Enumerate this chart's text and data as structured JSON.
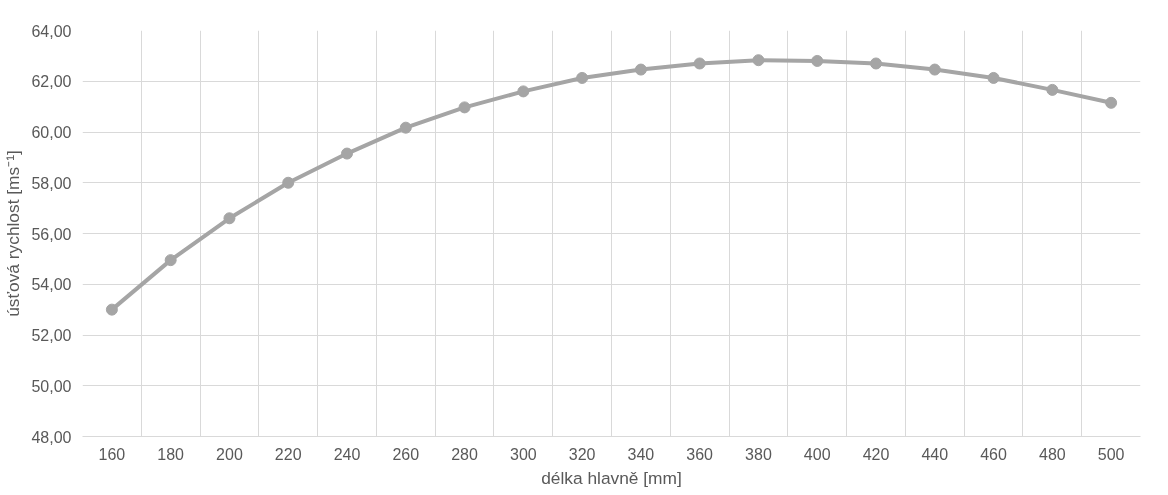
{
  "chart_data": {
    "type": "line",
    "xlabel": "délka hlavně [mm]",
    "ylabel": "úsťová rychlost [ms⁻¹]",
    "categories": [
      "160",
      "180",
      "200",
      "220",
      "240",
      "260",
      "280",
      "300",
      "320",
      "340",
      "360",
      "380",
      "400",
      "420",
      "440",
      "460",
      "480",
      "500"
    ],
    "series": [
      {
        "color": "#a5a5a5",
        "values": [
          53.0,
          54.95,
          56.6,
          58.0,
          59.15,
          60.17,
          60.97,
          61.6,
          62.13,
          62.46,
          62.7,
          62.83,
          62.8,
          62.7,
          62.46,
          62.13,
          61.66,
          61.15
        ]
      }
    ],
    "ylim": [
      48,
      64
    ],
    "yticks": [
      {
        "value": 48,
        "label": "48,00"
      },
      {
        "value": 50,
        "label": "50,00"
      },
      {
        "value": 52,
        "label": "52,00"
      },
      {
        "value": 54,
        "label": "54,00"
      },
      {
        "value": 56,
        "label": "56,00"
      },
      {
        "value": 58,
        "label": "58,00"
      },
      {
        "value": 60,
        "label": "60,00"
      },
      {
        "value": 62,
        "label": "62,00"
      },
      {
        "value": 64,
        "label": "64,00"
      }
    ],
    "grid": true,
    "marker": "circle",
    "line_style": "solid"
  }
}
